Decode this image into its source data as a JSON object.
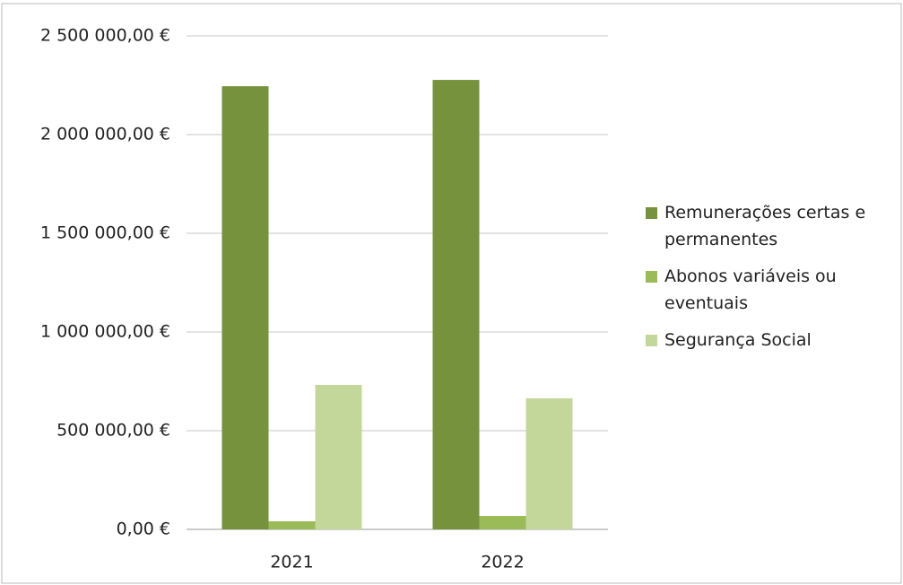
{
  "chart_data": {
    "type": "bar",
    "categories": [
      "2021",
      "2022"
    ],
    "series": [
      {
        "name": "Remunerações certas e permanentes",
        "color": "#76923c",
        "values": [
          2245000,
          2277000
        ]
      },
      {
        "name": "Abonos variáveis ou eventuais",
        "color": "#9bbb59",
        "values": [
          41000,
          68000
        ]
      },
      {
        "name": "Segurança Social",
        "color": "#c4d79b",
        "values": [
          732000,
          664000
        ]
      }
    ],
    "ylim": [
      0,
      2500000
    ],
    "yticks": [
      {
        "value": 0,
        "label": "0,00 €"
      },
      {
        "value": 500000,
        "label": "500 000,00 €"
      },
      {
        "value": 1000000,
        "label": "1 000 000,00 €"
      },
      {
        "value": 1500000,
        "label": "1 500 000,00 €"
      },
      {
        "value": 2000000,
        "label": "2 000 000,00 €"
      },
      {
        "value": 2500000,
        "label": "2 500 000,00 €"
      }
    ],
    "grid": true,
    "legend": "right"
  }
}
